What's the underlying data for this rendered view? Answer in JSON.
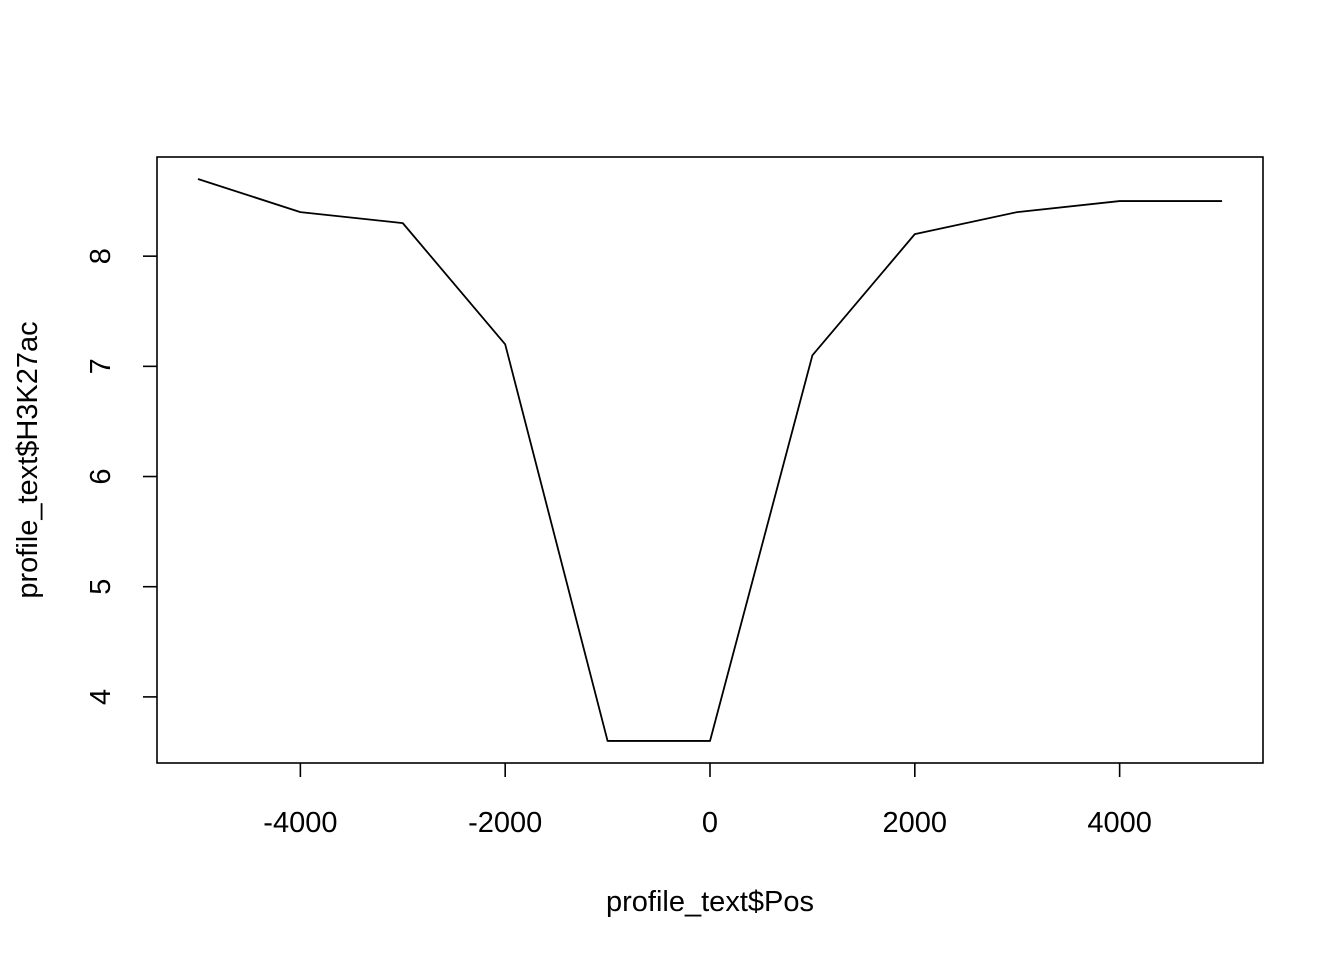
{
  "chart_data": {
    "type": "line",
    "xlabel": "profile_text$Pos",
    "ylabel": "profile_text$H3K27ac",
    "x": [
      -5000,
      -4000,
      -3000,
      -2000,
      -1000,
      0,
      1000,
      2000,
      3000,
      4000,
      5000
    ],
    "series": [
      {
        "values": [
          8.7,
          8.4,
          8.3,
          7.2,
          3.6,
          3.6,
          7.1,
          8.2,
          8.4,
          8.5,
          8.5
        ],
        "color": "#000000"
      }
    ],
    "xlim": [
      -5400,
      5400
    ],
    "ylim": [
      3.4,
      8.9
    ],
    "xticks": [
      -4000,
      -2000,
      0,
      2000,
      4000
    ],
    "xtick_labels": [
      "-4000",
      "-2000",
      "0",
      "2000",
      "4000"
    ],
    "yticks": [
      4,
      5,
      6,
      7,
      8
    ],
    "ytick_labels": [
      "4",
      "5",
      "6",
      "7",
      "8"
    ],
    "grid": false,
    "legend": "none"
  }
}
